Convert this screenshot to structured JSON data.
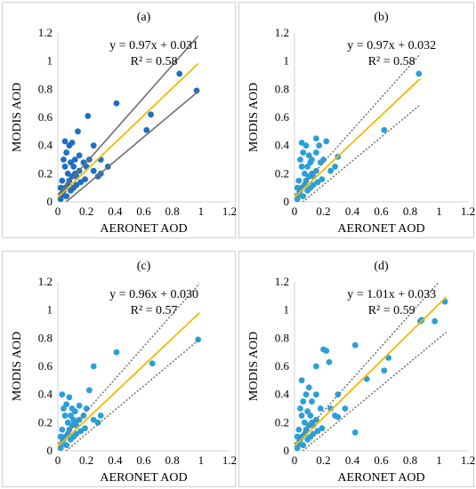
{
  "chart_data": [
    {
      "type": "scatter",
      "panel_label": "(a)",
      "xlabel": "AERONET AOD",
      "ylabel": "MODIS AOD",
      "xlim": [
        0,
        1.2
      ],
      "ylim": [
        0,
        1.2
      ],
      "xticks": [
        "0",
        "0.2",
        "0.4",
        "0.6",
        "0.8",
        "1",
        "1.2"
      ],
      "yticks": [
        "0",
        "0.2",
        "0.4",
        "0.6",
        "0.8",
        "1",
        "1.2"
      ],
      "equation": "y = 0.97x + 0.031",
      "r2": "R² = 0.58",
      "point_color": "#1f6fc0",
      "fit_color": "#f5b800",
      "bound_color": "#707070",
      "bound_style": "solid",
      "fit": {
        "slope": 0.97,
        "intercept": 0.031
      },
      "bounds": [
        {
          "slope": 1.15,
          "intercept": 0.05
        },
        {
          "slope": 0.85,
          "intercept": -0.05
        }
      ],
      "points": [
        [
          0.02,
          0.02
        ],
        [
          0.03,
          0.05
        ],
        [
          0.04,
          0.08
        ],
        [
          0.05,
          0.1
        ],
        [
          0.06,
          0.04
        ],
        [
          0.07,
          0.12
        ],
        [
          0.08,
          0.15
        ],
        [
          0.1,
          0.18
        ],
        [
          0.12,
          0.2
        ],
        [
          0.15,
          0.22
        ],
        [
          0.05,
          0.25
        ],
        [
          0.04,
          0.3
        ],
        [
          0.06,
          0.35
        ],
        [
          0.08,
          0.4
        ],
        [
          0.1,
          0.42
        ],
        [
          0.05,
          0.43
        ],
        [
          0.12,
          0.3
        ],
        [
          0.15,
          0.33
        ],
        [
          0.18,
          0.28
        ],
        [
          0.2,
          0.25
        ],
        [
          0.22,
          0.3
        ],
        [
          0.25,
          0.22
        ],
        [
          0.28,
          0.18
        ],
        [
          0.3,
          0.2
        ],
        [
          0.09,
          0.08
        ],
        [
          0.11,
          0.1
        ],
        [
          0.13,
          0.12
        ],
        [
          0.16,
          0.14
        ],
        [
          0.19,
          0.16
        ],
        [
          0.14,
          0.5
        ],
        [
          0.21,
          0.61
        ],
        [
          0.25,
          0.4
        ],
        [
          0.3,
          0.3
        ],
        [
          0.35,
          0.25
        ],
        [
          0.41,
          0.7
        ],
        [
          0.62,
          0.51
        ],
        [
          0.65,
          0.62
        ],
        [
          0.85,
          0.91
        ],
        [
          0.97,
          0.79
        ],
        [
          0.03,
          0.15
        ],
        [
          0.02,
          0.1
        ],
        [
          0.07,
          0.2
        ],
        [
          0.09,
          0.28
        ],
        [
          0.11,
          0.25
        ],
        [
          0.13,
          0.18
        ]
      ]
    },
    {
      "type": "scatter",
      "panel_label": "(b)",
      "xlabel": "AERONET AOD",
      "ylabel": "MODIS AOD",
      "xlim": [
        0,
        1.2
      ],
      "ylim": [
        0,
        1.2
      ],
      "xticks": [
        "0",
        "0.2",
        "0.4",
        "0.6",
        "0.8",
        "1",
        "1.2"
      ],
      "yticks": [
        "0",
        "0.2",
        "0.4",
        "0.6",
        "0.8",
        "1",
        "1.2"
      ],
      "equation": "y = 0.97x + 0.032",
      "r2": "R² = 0.58",
      "point_color": "#2b9fd8",
      "fit_color": "#f5b800",
      "bound_color": "#707070",
      "bound_style": "dotted",
      "fit": {
        "slope": 0.97,
        "intercept": 0.032
      },
      "bounds": [
        {
          "slope": 1.15,
          "intercept": 0.05
        },
        {
          "slope": 0.85,
          "intercept": -0.05
        }
      ],
      "points": [
        [
          0.02,
          0.02
        ],
        [
          0.03,
          0.05
        ],
        [
          0.04,
          0.08
        ],
        [
          0.05,
          0.1
        ],
        [
          0.06,
          0.04
        ],
        [
          0.07,
          0.12
        ],
        [
          0.08,
          0.15
        ],
        [
          0.1,
          0.18
        ],
        [
          0.12,
          0.2
        ],
        [
          0.15,
          0.22
        ],
        [
          0.05,
          0.25
        ],
        [
          0.04,
          0.3
        ],
        [
          0.06,
          0.35
        ],
        [
          0.08,
          0.4
        ],
        [
          0.1,
          0.33
        ],
        [
          0.05,
          0.42
        ],
        [
          0.12,
          0.3
        ],
        [
          0.15,
          0.35
        ],
        [
          0.18,
          0.28
        ],
        [
          0.2,
          0.3
        ],
        [
          0.22,
          0.43
        ],
        [
          0.25,
          0.22
        ],
        [
          0.28,
          0.25
        ],
        [
          0.3,
          0.32
        ],
        [
          0.09,
          0.08
        ],
        [
          0.11,
          0.1
        ],
        [
          0.13,
          0.12
        ],
        [
          0.16,
          0.14
        ],
        [
          0.19,
          0.16
        ],
        [
          0.17,
          0.4
        ],
        [
          0.15,
          0.45
        ],
        [
          0.62,
          0.51
        ],
        [
          0.86,
          0.91
        ],
        [
          0.03,
          0.15
        ],
        [
          0.02,
          0.1
        ],
        [
          0.07,
          0.2
        ],
        [
          0.09,
          0.25
        ],
        [
          0.11,
          0.28
        ],
        [
          0.13,
          0.18
        ]
      ]
    },
    {
      "type": "scatter",
      "panel_label": "(c)",
      "xlabel": "AERONET AOD",
      "ylabel": "MODIS AOD",
      "xlim": [
        0,
        1.2
      ],
      "ylim": [
        0,
        1.2
      ],
      "xticks": [
        "0",
        "0.2",
        "0.4",
        "0.6",
        "0.8",
        "1",
        "1.2"
      ],
      "yticks": [
        "0",
        "0.2",
        "0.4",
        "0.6",
        "0.8",
        "1",
        "1.2"
      ],
      "equation": "y = 0.96x + 0.030",
      "r2": "R² = 0.57",
      "point_color": "#2b9fd8",
      "fit_color": "#f5b800",
      "bound_color": "#707070",
      "bound_style": "dotted",
      "fit": {
        "slope": 0.96,
        "intercept": 0.03
      },
      "bounds": [
        {
          "slope": 1.15,
          "intercept": 0.05
        },
        {
          "slope": 0.85,
          "intercept": -0.05
        }
      ],
      "points": [
        [
          0.02,
          0.02
        ],
        [
          0.03,
          0.05
        ],
        [
          0.04,
          0.08
        ],
        [
          0.05,
          0.1
        ],
        [
          0.06,
          0.04
        ],
        [
          0.07,
          0.12
        ],
        [
          0.08,
          0.15
        ],
        [
          0.1,
          0.18
        ],
        [
          0.12,
          0.2
        ],
        [
          0.15,
          0.22
        ],
        [
          0.05,
          0.25
        ],
        [
          0.04,
          0.3
        ],
        [
          0.06,
          0.33
        ],
        [
          0.08,
          0.38
        ],
        [
          0.03,
          0.4
        ],
        [
          0.1,
          0.3
        ],
        [
          0.12,
          0.28
        ],
        [
          0.15,
          0.32
        ],
        [
          0.18,
          0.25
        ],
        [
          0.2,
          0.3
        ],
        [
          0.22,
          0.43
        ],
        [
          0.25,
          0.6
        ],
        [
          0.25,
          0.22
        ],
        [
          0.28,
          0.2
        ],
        [
          0.3,
          0.25
        ],
        [
          0.09,
          0.08
        ],
        [
          0.11,
          0.1
        ],
        [
          0.13,
          0.12
        ],
        [
          0.16,
          0.14
        ],
        [
          0.19,
          0.16
        ],
        [
          0.41,
          0.7
        ],
        [
          0.66,
          0.62
        ],
        [
          0.98,
          0.79
        ],
        [
          0.03,
          0.15
        ],
        [
          0.02,
          0.1
        ],
        [
          0.07,
          0.2
        ],
        [
          0.09,
          0.25
        ],
        [
          0.11,
          0.22
        ],
        [
          0.13,
          0.18
        ]
      ]
    },
    {
      "type": "scatter",
      "panel_label": "(d)",
      "xlabel": "AERONET AOD",
      "ylabel": "MODIS AOD",
      "xlim": [
        0,
        1.2
      ],
      "ylim": [
        0,
        1.2
      ],
      "xticks": [
        "0",
        "0.2",
        "0.4",
        "0.6",
        "0.8",
        "1",
        "1.2"
      ],
      "yticks": [
        "0",
        "0.2",
        "0.4",
        "0.6",
        "0.8",
        "1",
        "1.2"
      ],
      "equation": "y = 1.01x + 0.033",
      "r2": "R² = 0.59",
      "point_color": "#2b9fd8",
      "fit_color": "#f5b800",
      "bound_color": "#707070",
      "bound_style": "dotted",
      "fit": {
        "slope": 1.01,
        "intercept": 0.033
      },
      "bounds": [
        {
          "slope": 1.15,
          "intercept": 0.05
        },
        {
          "slope": 0.85,
          "intercept": -0.05
        }
      ],
      "points": [
        [
          0.02,
          0.02
        ],
        [
          0.03,
          0.05
        ],
        [
          0.04,
          0.08
        ],
        [
          0.05,
          0.1
        ],
        [
          0.06,
          0.04
        ],
        [
          0.07,
          0.12
        ],
        [
          0.08,
          0.15
        ],
        [
          0.1,
          0.18
        ],
        [
          0.12,
          0.2
        ],
        [
          0.15,
          0.22
        ],
        [
          0.05,
          0.25
        ],
        [
          0.04,
          0.3
        ],
        [
          0.06,
          0.35
        ],
        [
          0.08,
          0.4
        ],
        [
          0.1,
          0.45
        ],
        [
          0.05,
          0.5
        ],
        [
          0.12,
          0.35
        ],
        [
          0.15,
          0.4
        ],
        [
          0.18,
          0.3
        ],
        [
          0.2,
          0.72
        ],
        [
          0.22,
          0.71
        ],
        [
          0.25,
          0.3
        ],
        [
          0.28,
          0.25
        ],
        [
          0.3,
          0.24
        ],
        [
          0.09,
          0.08
        ],
        [
          0.11,
          0.1
        ],
        [
          0.13,
          0.12
        ],
        [
          0.16,
          0.14
        ],
        [
          0.19,
          0.16
        ],
        [
          0.15,
          0.6
        ],
        [
          0.24,
          0.63
        ],
        [
          0.3,
          0.4
        ],
        [
          0.35,
          0.3
        ],
        [
          0.42,
          0.75
        ],
        [
          0.42,
          0.13
        ],
        [
          0.5,
          0.51
        ],
        [
          0.62,
          0.57
        ],
        [
          0.65,
          0.66
        ],
        [
          0.87,
          0.92
        ],
        [
          0.88,
          0.93
        ],
        [
          0.97,
          0.92
        ],
        [
          1.04,
          1.06
        ],
        [
          0.03,
          0.15
        ],
        [
          0.02,
          0.1
        ],
        [
          0.07,
          0.2
        ],
        [
          0.09,
          0.28
        ],
        [
          0.11,
          0.25
        ],
        [
          0.13,
          0.18
        ]
      ]
    }
  ]
}
